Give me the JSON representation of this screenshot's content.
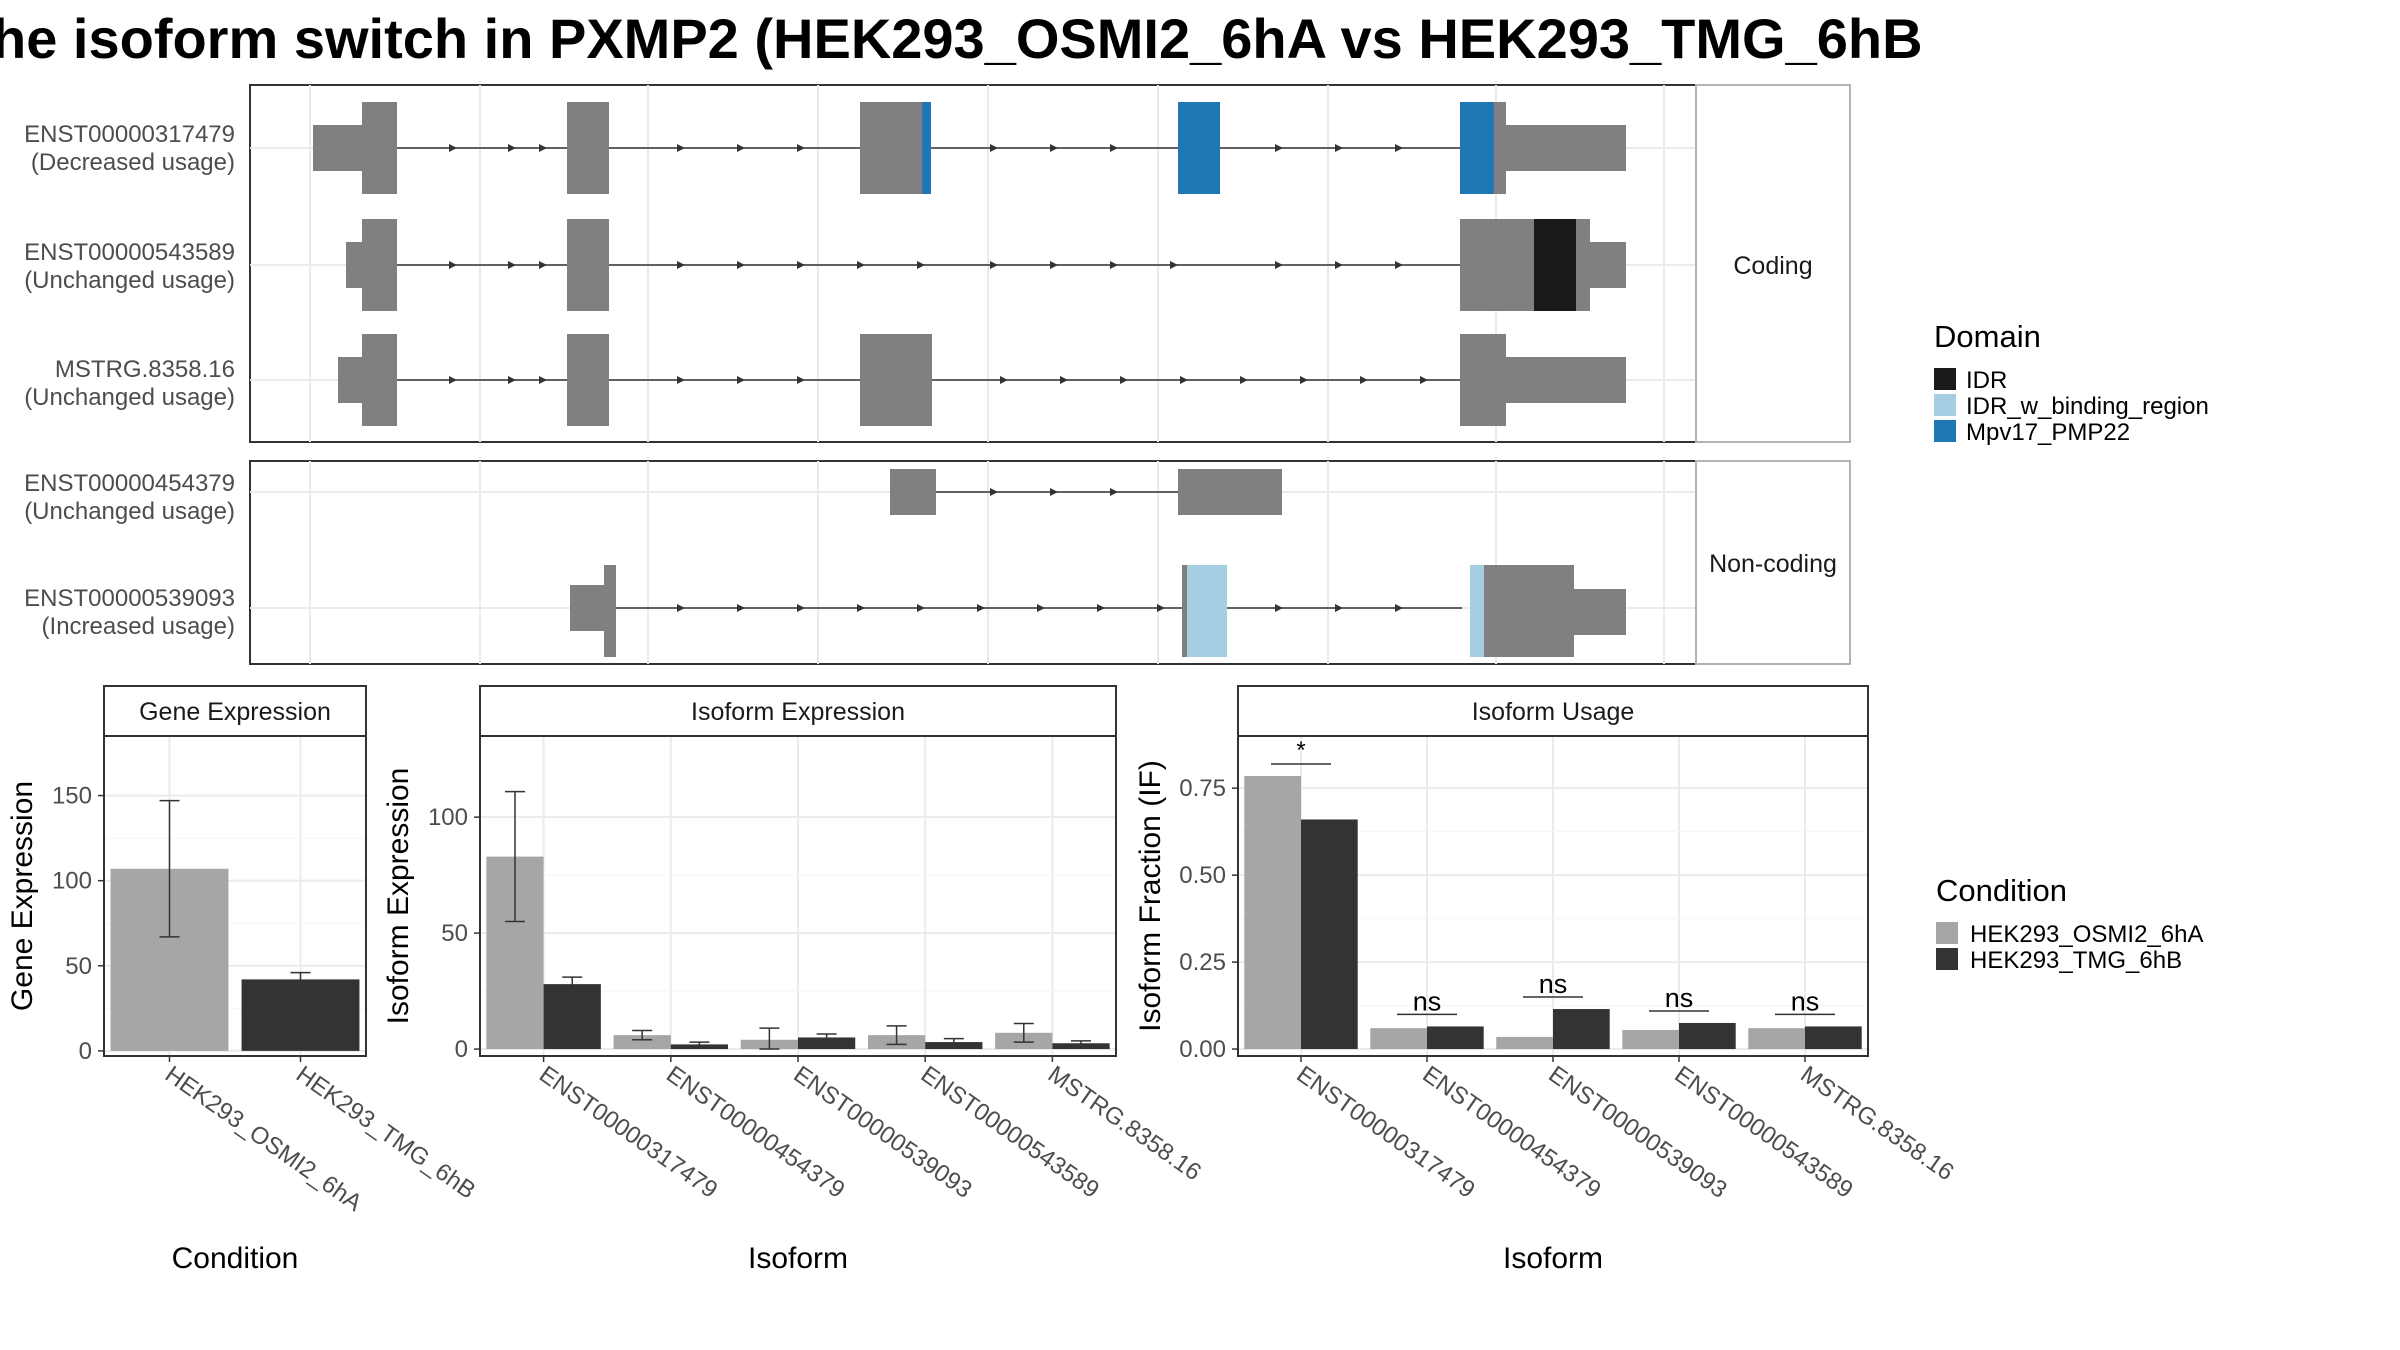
{
  "title": "he isoform switch in PXMP2 (HEK293_OSMI2_6hA vs HEK293_TMG_6hB",
  "structure": {
    "panels": [
      {
        "strip": "Coding",
        "transcripts": [
          {
            "id": "ENST00000317479",
            "usage": "(Decreased usage)"
          },
          {
            "id": "ENST00000543589",
            "usage": "(Unchanged usage)"
          },
          {
            "id": "MSTRG.8358.16",
            "usage": "(Unchanged usage)"
          }
        ]
      },
      {
        "strip": "Non-coding",
        "transcripts": [
          {
            "id": "ENST00000454379",
            "usage": "(Unchanged usage)"
          },
          {
            "id": "ENST00000539093",
            "usage": "(Increased usage)"
          }
        ]
      }
    ]
  },
  "legend_domain": {
    "title": "Domain",
    "items": [
      {
        "label": "IDR",
        "color": "#1a1a1a"
      },
      {
        "label": "IDR_w_binding_region",
        "color": "#a6cee3"
      },
      {
        "label": "Mpv17_PMP22",
        "color": "#1f78b4"
      }
    ]
  },
  "legend_condition": {
    "title": "Condition",
    "items": [
      {
        "label": "HEK293_OSMI2_6hA",
        "color": "#a6a6a6"
      },
      {
        "label": "HEK293_TMG_6hB",
        "color": "#333333"
      }
    ]
  },
  "chart_data": [
    {
      "type": "bar",
      "title": "Gene Expression",
      "xlabel": "Condition",
      "ylabel": "Gene Expression",
      "categories": [
        "HEK293_OSMI2_6hA",
        "HEK293_TMG_6hB"
      ],
      "values": [
        107,
        42
      ],
      "error_low": [
        67,
        38
      ],
      "error_high": [
        147,
        46
      ],
      "ylim": [
        -3,
        185
      ],
      "yticks": [
        0,
        50,
        100,
        150
      ]
    },
    {
      "type": "bar",
      "title": "Isoform Expression",
      "xlabel": "Isoform",
      "ylabel": "Isoform Expression",
      "categories": [
        "ENST00000317479",
        "ENST00000454379",
        "ENST00000539093",
        "ENST00000543589",
        "MSTRG.8358.16"
      ],
      "series": [
        {
          "name": "HEK293_OSMI2_6hA",
          "values": [
            83,
            6,
            4,
            6,
            7
          ],
          "error_low": [
            55,
            4,
            0,
            2,
            3
          ],
          "error_high": [
            111,
            8,
            9,
            10,
            11
          ]
        },
        {
          "name": "HEK293_TMG_6hB",
          "values": [
            28,
            2,
            5,
            3,
            2.5
          ],
          "error_low": [
            25,
            1.5,
            3.5,
            2,
            1.5
          ],
          "error_high": [
            31,
            3,
            6.5,
            4.5,
            3.5
          ]
        }
      ],
      "ylim": [
        -3,
        135
      ],
      "yticks": [
        0,
        50,
        100
      ]
    },
    {
      "type": "bar",
      "title": "Isoform Usage",
      "xlabel": "Isoform",
      "ylabel": "Isoform Fraction (IF)",
      "categories": [
        "ENST00000317479",
        "ENST00000454379",
        "ENST00000539093",
        "ENST00000543589",
        "MSTRG.8358.16"
      ],
      "series": [
        {
          "name": "HEK293_OSMI2_6hA",
          "values": [
            0.785,
            0.06,
            0.035,
            0.055,
            0.06
          ]
        },
        {
          "name": "HEK293_TMG_6hB",
          "values": [
            0.66,
            0.065,
            0.115,
            0.075,
            0.065
          ]
        }
      ],
      "significance": [
        "*",
        "ns",
        "ns",
        "ns",
        "ns"
      ],
      "ylim": [
        -0.02,
        0.9
      ],
      "yticks": [
        "0.00",
        "0.25",
        "0.50",
        "0.75"
      ]
    }
  ]
}
